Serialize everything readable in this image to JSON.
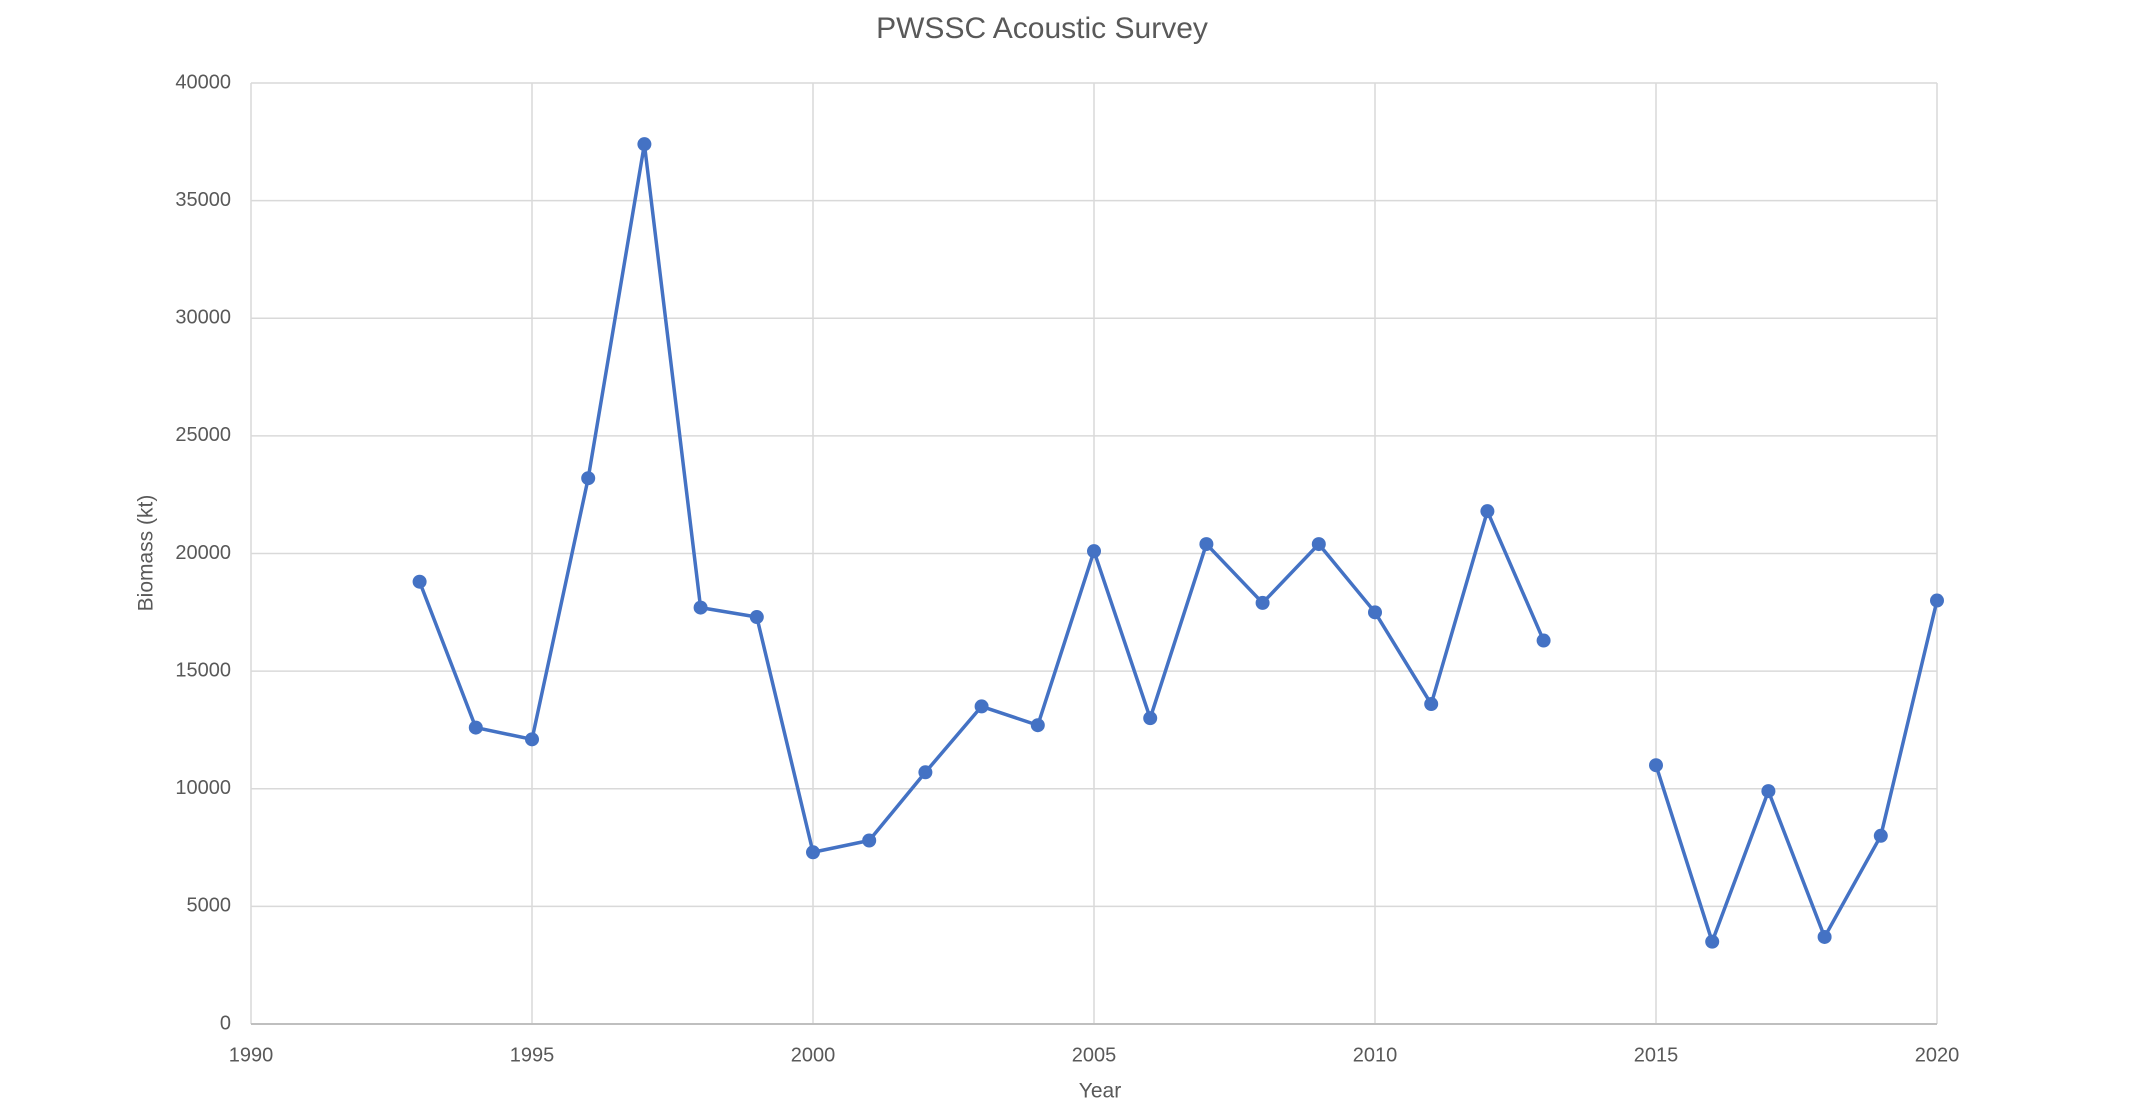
{
  "chart_data": {
    "type": "line",
    "title": "PWSSC Acoustic Survey",
    "x_label": "Year",
    "y_label": "Biomass (kt)",
    "x": [
      1993,
      1994,
      1995,
      1996,
      1997,
      1998,
      1999,
      2000,
      2001,
      2002,
      2003,
      2004,
      2005,
      2006,
      2007,
      2008,
      2009,
      2010,
      2011,
      2012,
      2013,
      2014,
      2015,
      2016,
      2017,
      2018,
      2019,
      2020
    ],
    "values": [
      18800,
      12600,
      12100,
      23200,
      37400,
      17700,
      17300,
      7300,
      7800,
      10700,
      13500,
      12700,
      20100,
      13000,
      20400,
      17900,
      20400,
      17500,
      13600,
      21800,
      16300,
      null,
      11000,
      3500,
      9900,
      3700,
      8000,
      18000
    ],
    "color": "#4472c4",
    "xlim": [
      1990,
      2020
    ],
    "xticks": [
      1990,
      1995,
      2000,
      2005,
      2010,
      2015,
      2020
    ],
    "ylim": [
      0,
      40000
    ],
    "yticks": [
      0,
      5000,
      10000,
      15000,
      20000,
      25000,
      30000,
      35000,
      40000
    ],
    "grid": true
  }
}
